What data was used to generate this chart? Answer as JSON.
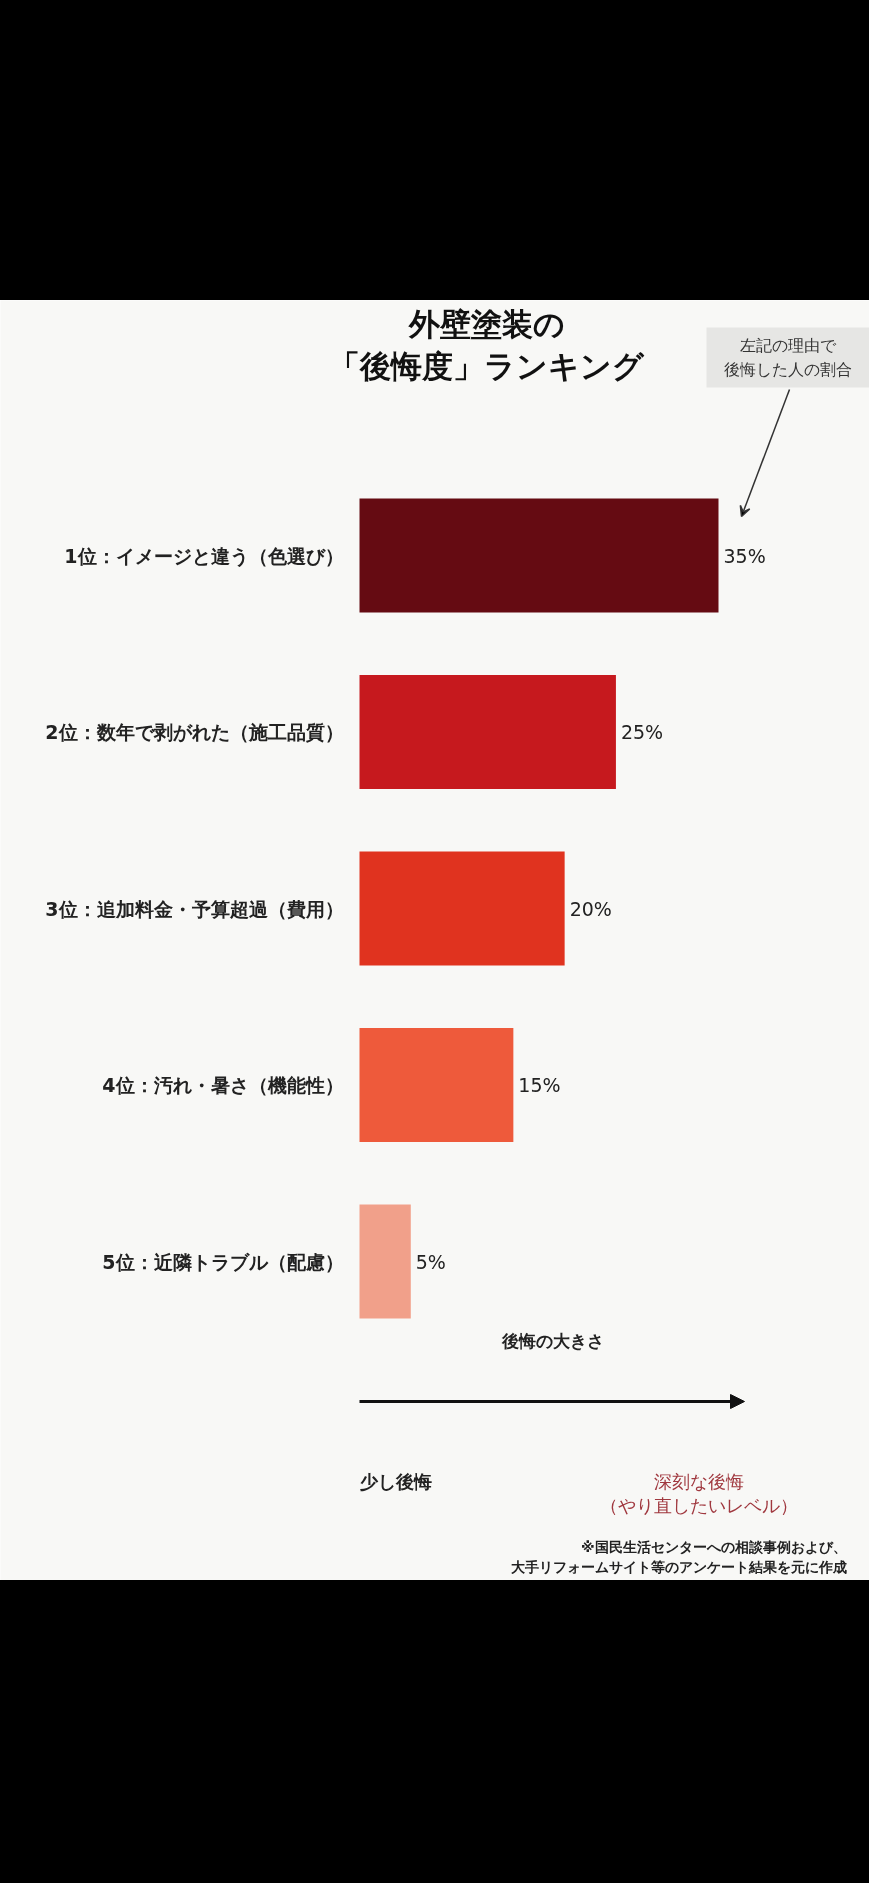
{
  "chart_data": {
    "type": "bar",
    "orientation": "horizontal",
    "title": "外壁塗装の「後悔度」ランキング",
    "xlabel": "後悔の大きさ",
    "categories": [
      "1位：イメージと違う（色選び）",
      "2位：数年で剥がれた（施工品質）",
      "3位：追加料金・予算超過（費用）",
      "4位：汚れ・暑さ（機能性）",
      "5位：近隣トラブル（配慮）"
    ],
    "values": [
      35,
      25,
      20,
      15,
      5
    ],
    "value_labels": [
      "35%",
      "25%",
      "20%",
      "15%",
      "5%"
    ],
    "colors": [
      "#650b12",
      "#c6191e",
      "#e0331f",
      "#ee5a3b",
      "#f1a08a"
    ],
    "annotations": [
      "左記の理由で後悔した人の割合",
      "少し後悔",
      "深刻な後悔（やり直したいレベル）",
      "※国民生活センターへの相談事例および、大手リフォームサイト等のアンケート結果を元に作成"
    ]
  }
}
